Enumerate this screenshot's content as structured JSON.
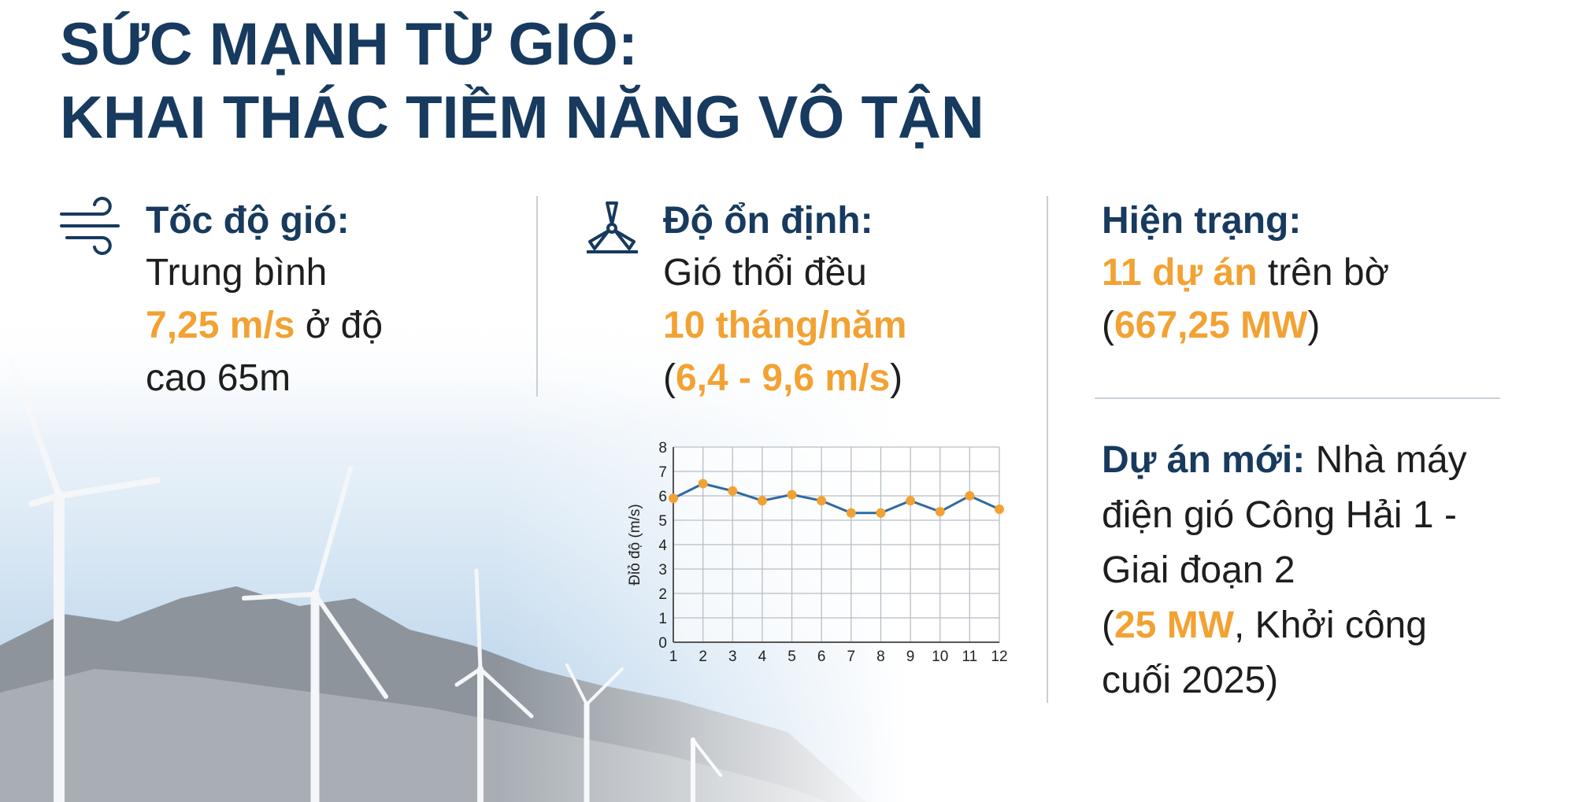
{
  "title": [
    "SỨC MẠNH TỪ GIÓ:",
    "KHAI THÁC TIỀM NĂNG VÔ TẬN"
  ],
  "columns": [
    {
      "heading": "Tốc độ gió:",
      "lines": [
        [
          {
            "text": "Trung bình",
            "color": "#1e1e1e"
          }
        ],
        [
          {
            "text": "7,25 m/s",
            "color": "#f2a233",
            "weight": "bold"
          },
          {
            "text": " ở độ",
            "color": "#1e1e1e"
          }
        ],
        [
          {
            "text": "cao 65m",
            "color": "#1e1e1e"
          }
        ]
      ]
    },
    {
      "heading": "Độ ổn định:",
      "lines": [
        [
          {
            "text": "Gió thổi đều",
            "color": "#1e1e1e"
          }
        ],
        [
          {
            "text": "10 tháng/năm",
            "color": "#f2a233",
            "weight": "bold"
          }
        ],
        [
          {
            "text": "(",
            "color": "#1e1e1e"
          },
          {
            "text": "6,4 - 9,6 m/s",
            "color": "#f2a233",
            "weight": "bold"
          },
          {
            "text": ")",
            "color": "#1e1e1e"
          }
        ]
      ]
    },
    {
      "heading": "Hiện trạng:",
      "lines": [
        [
          {
            "text": "11 dự án",
            "color": "#f2a233",
            "weight": "bold"
          },
          {
            "text": " trên bờ",
            "color": "#1e1e1e"
          }
        ],
        [
          {
            "text": "(",
            "color": "#1e1e1e"
          },
          {
            "text": "667,25 MW",
            "color": "#f2a233",
            "weight": "bold"
          },
          {
            "text": ")",
            "color": "#1e1e1e"
          }
        ]
      ]
    }
  ],
  "new_project": {
    "lines": [
      [
        {
          "text": "Dự án mới:",
          "color": "#173a5e",
          "weight": "bold"
        },
        {
          "text": " Nhà máy",
          "color": "#1e1e1e"
        }
      ],
      [
        {
          "text": "điện gió Công Hải 1 -",
          "color": "#1e1e1e"
        }
      ],
      [
        {
          "text": "Giai đoạn 2",
          "color": "#1e1e1e"
        }
      ],
      [
        {
          "text": "(",
          "color": "#1e1e1e"
        },
        {
          "text": "25 MW",
          "color": "#f2a233",
          "weight": "bold"
        },
        {
          "text": ", Khởi công",
          "color": "#1e1e1e"
        }
      ],
      [
        {
          "text": "cuối 2025)",
          "color": "#1e1e1e"
        }
      ]
    ]
  },
  "chart_data": {
    "type": "line",
    "y_label": "Đỉỏ độ (m/s)",
    "x": [
      1,
      2,
      3,
      4,
      5,
      6,
      7,
      8,
      9,
      10,
      11,
      12
    ],
    "series": [
      {
        "color": "#2f6aa0",
        "marker_color": "#f2a233",
        "values": [
          5.9,
          6.5,
          6.2,
          5.8,
          6.05,
          5.8,
          5.3,
          5.3,
          5.8,
          5.35,
          6.0,
          5.45
        ]
      }
    ],
    "xlim": [
      1,
      12
    ],
    "xticks": [
      1,
      2,
      3,
      4,
      5,
      6,
      7,
      8,
      9,
      10,
      11,
      12
    ],
    "ylim": [
      0,
      8
    ],
    "yticks": [
      0,
      1,
      2,
      3,
      4,
      5,
      6,
      7,
      8
    ],
    "grid": true
  }
}
